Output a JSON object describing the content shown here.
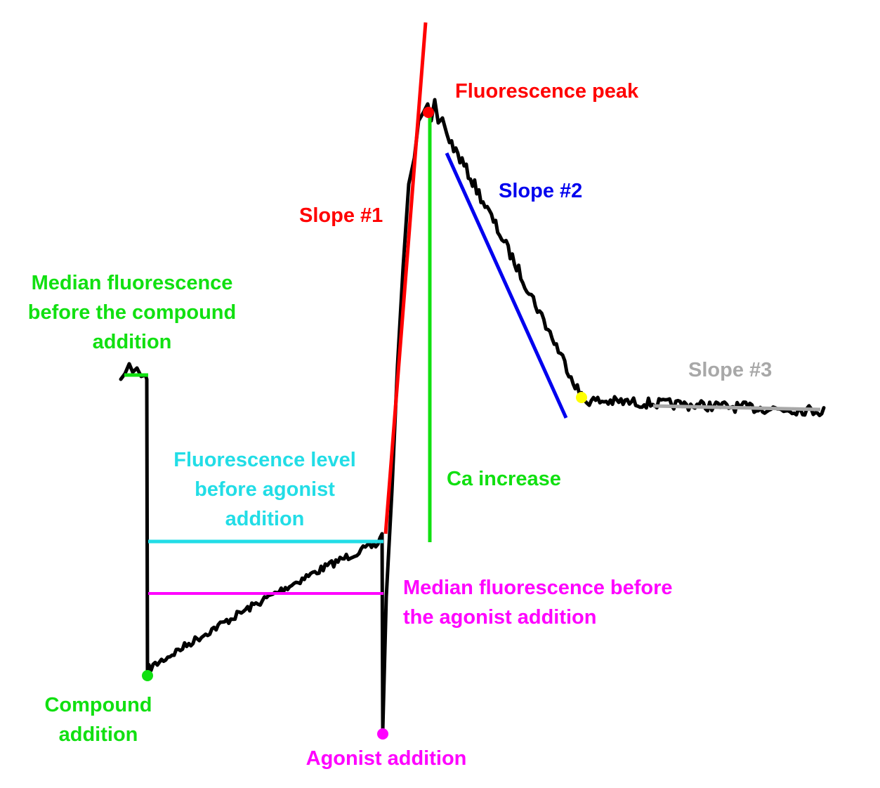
{
  "colors": {
    "trace": "#000000",
    "green": "#11e011",
    "red": "#ff0000",
    "blue": "#0000ee",
    "gray": "#a8a8a8",
    "cyan": "#22dde6",
    "magenta": "#ff00ff",
    "yellow": "#ffff00"
  },
  "labels": {
    "median_compound": [
      "Median fluorescence",
      "before the compound",
      "addition"
    ],
    "compound_addition": [
      "Compound",
      "addition"
    ],
    "level_agonist": [
      "Fluorescence level",
      "before agonist",
      "addition"
    ],
    "median_agonist": [
      "Median fluorescence before",
      "the agonist addition"
    ],
    "agonist_addition": "Agonist addition",
    "slope1": "Slope #1",
    "slope2": "Slope #2",
    "slope3": "Slope #3",
    "peak": "Fluorescence peak",
    "ca_increase": "Ca increase"
  }
}
